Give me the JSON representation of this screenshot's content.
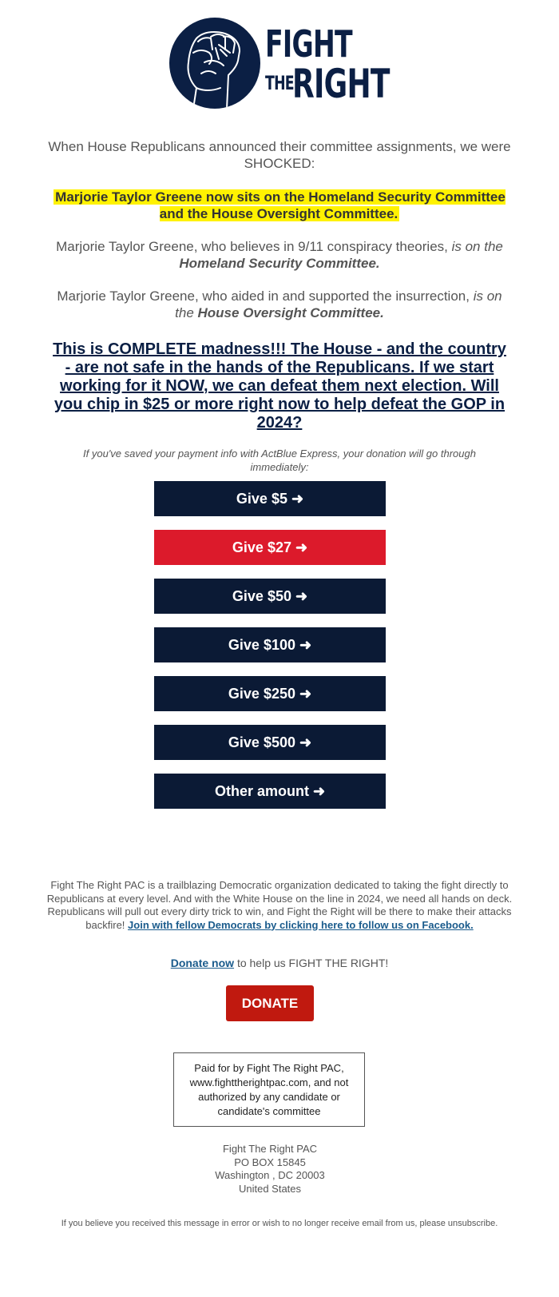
{
  "logo": {
    "line1": "FIGHT",
    "line2a": "THE",
    "line2b": "RIGHT",
    "icon": "raised-fist-icon"
  },
  "intro": "When House Republicans announced their committee assignments, we were SHOCKED:",
  "highlight": "Marjorie Taylor Greene now sits on the Homeland Security Committee and the House Oversight Committee.",
  "para1": {
    "text": "Marjorie Taylor Greene, who believes in 9/11 conspiracy theories, ",
    "italic": "is on the ",
    "bold_italic": "Homeland Security Committee."
  },
  "para2": {
    "text": "Marjorie Taylor Greene, who aided in and supported the insurrection, ",
    "italic": "is on the ",
    "bold_italic": "House Oversight Committee."
  },
  "headline": "This is COMPLETE madness!!! The House - and the country - are not safe in the hands of the Republicans. If we start working for it NOW, we can defeat them next election. Will you chip in $25 or more right now to help defeat the GOP in 2024?",
  "express_note": "If you've saved your payment info with ActBlue Express, your donation will go through immediately:",
  "buttons": [
    {
      "label": "Give $5 ➜",
      "color": "#0b1a35"
    },
    {
      "label": "Give $27 ➜",
      "color": "#dc1a2b"
    },
    {
      "label": "Give $50 ➜",
      "color": "#0b1a35"
    },
    {
      "label": "Give $100 ➜",
      "color": "#0b1a35"
    },
    {
      "label": "Give $250 ➜",
      "color": "#0b1a35"
    },
    {
      "label": "Give $500 ➜",
      "color": "#0b1a35"
    },
    {
      "label": "Other amount ➜",
      "color": "#0b1a35"
    }
  ],
  "about": {
    "text": "Fight The Right PAC is a trailblazing Democratic organization dedicated to taking the fight directly to Republicans at every level. And with the White House on the line in 2024, we need all hands on deck. Republicans will pull out every dirty trick to win, and Fight the Right will be there to make their attacks backfire! ",
    "link": "Join with fellow Democrats by clicking here to follow us on Facebook."
  },
  "donate_line": {
    "link": "Donate now",
    "text": " to help us FIGHT THE RIGHT!"
  },
  "donate_button": "DONATE",
  "paid_for": "Paid for by Fight The Right PAC, www.fighttherightpac.com, and not authorized by any candidate or candidate's committee",
  "address": {
    "name": "Fight The Right PAC",
    "box": "PO BOX 15845",
    "city": "Washington , DC 20003",
    "country": "United States"
  },
  "footer": "If you believe you received this message in error or wish to no longer receive email from us, please unsubscribe.",
  "colors": {
    "navy": "#0b1a35",
    "red": "#dc1a2b",
    "donate_red": "#c0190f",
    "highlight_yellow": "#fff200",
    "link_blue": "#1a5b8c"
  }
}
